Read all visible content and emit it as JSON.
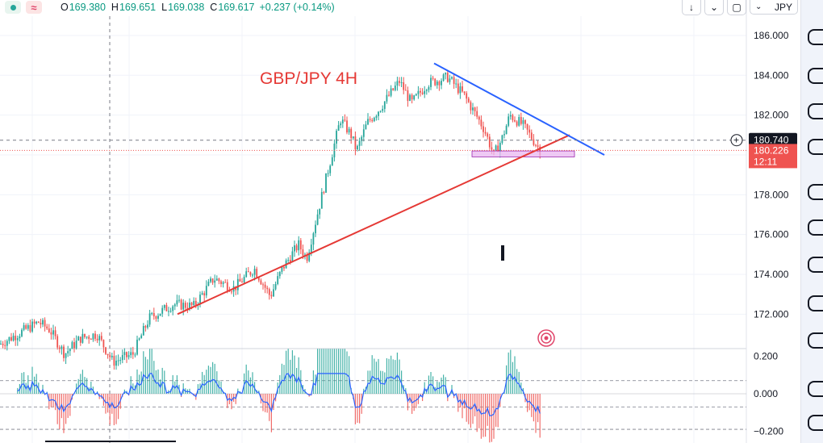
{
  "legend": {
    "open_label": "O",
    "open": "169.380",
    "high_label": "H",
    "high": "169.651",
    "low_label": "L",
    "low": "169.038",
    "close_label": "C",
    "close": "169.617",
    "change": "+0.237 (+0.14%)"
  },
  "toolbar": {
    "currency": "JPY",
    "arrow_down_icon": "arrow-down-icon",
    "collapse_icon": "collapse-icon",
    "fullscreen_icon": "fullscreen-icon",
    "chevron_icon": "chevron-down-icon"
  },
  "annotation_title": "GBP/JPY 4H",
  "price_tag": {
    "crosshair": "180.740",
    "last": "180.226",
    "countdown": "12:11"
  },
  "colors": {
    "up": "#26a69a",
    "down": "#ef5350",
    "trend_up": "#e53935",
    "trend_down": "#2962ff",
    "signal": "#2962ff",
    "zone": "#e9b7f0"
  },
  "chart_data": [
    {
      "type": "candlestick",
      "symbol": "GBP/JPY",
      "timeframe": "4H",
      "y_axis": {
        "ticks": [
          172,
          174,
          176,
          178,
          180,
          182,
          184,
          186
        ],
        "tick_labels": [
          "172.000",
          "174.000",
          "176.000",
          "178.000",
          "180.000",
          "182.000",
          "184.000",
          "186.000"
        ]
      },
      "path_anchors": [
        {
          "x": 0,
          "y": 170.5
        },
        {
          "x": 48,
          "y": 171.6
        },
        {
          "x": 62,
          "y": 171.2
        },
        {
          "x": 80,
          "y": 170.0
        },
        {
          "x": 100,
          "y": 170.8
        },
        {
          "x": 120,
          "y": 171.0
        },
        {
          "x": 140,
          "y": 169.6
        },
        {
          "x": 165,
          "y": 170.0
        },
        {
          "x": 185,
          "y": 171.8
        },
        {
          "x": 215,
          "y": 172.5
        },
        {
          "x": 240,
          "y": 172.4
        },
        {
          "x": 265,
          "y": 173.8
        },
        {
          "x": 290,
          "y": 173.3
        },
        {
          "x": 315,
          "y": 174.3
        },
        {
          "x": 335,
          "y": 172.9
        },
        {
          "x": 350,
          "y": 174.3
        },
        {
          "x": 370,
          "y": 175.5
        },
        {
          "x": 380,
          "y": 174.8
        },
        {
          "x": 395,
          "y": 177.3
        },
        {
          "x": 410,
          "y": 179.8
        },
        {
          "x": 422,
          "y": 181.8
        },
        {
          "x": 435,
          "y": 181.0
        },
        {
          "x": 442,
          "y": 180.2
        },
        {
          "x": 455,
          "y": 181.6
        },
        {
          "x": 470,
          "y": 182.3
        },
        {
          "x": 495,
          "y": 183.7
        },
        {
          "x": 510,
          "y": 182.6
        },
        {
          "x": 530,
          "y": 183.6
        },
        {
          "x": 555,
          "y": 183.9
        },
        {
          "x": 575,
          "y": 183.0
        },
        {
          "x": 590,
          "y": 182.0
        },
        {
          "x": 600,
          "y": 181.3
        },
        {
          "x": 612,
          "y": 180.0
        },
        {
          "x": 622,
          "y": 180.8
        },
        {
          "x": 632,
          "y": 182.0
        },
        {
          "x": 648,
          "y": 181.5
        },
        {
          "x": 660,
          "y": 180.8
        },
        {
          "x": 670,
          "y": 180.2
        }
      ],
      "drawings": {
        "trendline_support": {
          "from": {
            "x": 220,
            "y": 172.0
          },
          "to": {
            "x": 706,
            "y": 181.0
          }
        },
        "trendline_resistance": {
          "from": {
            "x": 538,
            "y": 184.6
          },
          "to": {
            "x": 749,
            "y": 180.0
          }
        },
        "support_zone": {
          "x_from": 585,
          "x_to": 712,
          "y_from": 179.9,
          "y_to": 180.2
        },
        "crosshair_price": 180.74,
        "last_price": 180.226
      }
    },
    {
      "type": "histogram",
      "name": "oscillator",
      "y_axis": {
        "ticks": [
          0.2,
          0.0,
          -0.2
        ],
        "tick_labels": [
          "0.200",
          "0.000",
          "−0.200"
        ]
      },
      "levels": [
        0.07,
        -0.07,
        -0.19
      ]
    }
  ]
}
